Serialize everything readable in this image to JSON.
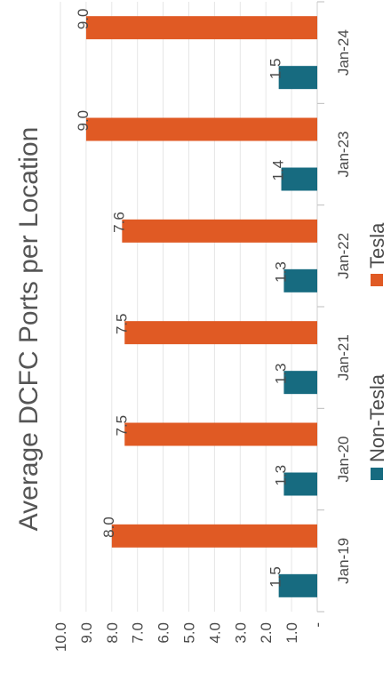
{
  "chart_data": {
    "type": "bar",
    "orientation": "horizontal",
    "title": "Average DCFC Ports per Location",
    "categories": [
      "Jan-19",
      "Jan-20",
      "Jan-21",
      "Jan-22",
      "Jan-23",
      "Jan-24"
    ],
    "series": [
      {
        "name": "Non-Tesla",
        "values": [
          1.5,
          1.3,
          1.3,
          1.3,
          1.4,
          1.5
        ],
        "labels": [
          "1.5",
          "1.3",
          "1.3",
          "1.3",
          "1.4",
          "1.5"
        ],
        "color": "#176b80"
      },
      {
        "name": "Tesla",
        "values": [
          8.0,
          7.5,
          7.5,
          7.6,
          9.0,
          9.0
        ],
        "labels": [
          "8.0",
          "7.5",
          "7.5",
          "7.6",
          "9.0",
          "9.0"
        ],
        "color": "#e05a24"
      }
    ],
    "value_axis": {
      "range": [
        0,
        10
      ],
      "ticks": [
        0,
        1,
        2,
        3,
        4,
        5,
        6,
        7,
        8,
        9,
        10
      ],
      "tick_labels": [
        "-",
        "1.0",
        "2.0",
        "3.0",
        "4.0",
        "5.0",
        "6.0",
        "7.0",
        "8.0",
        "9.0",
        "10.0"
      ]
    },
    "grid": true,
    "legend_position": "bottom"
  }
}
